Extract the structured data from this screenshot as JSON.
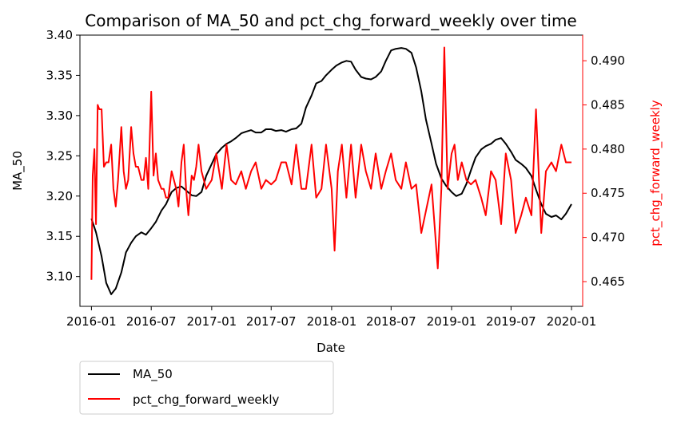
{
  "chart_data": {
    "type": "line",
    "title": "Comparison of MA_50 and pct_chg_forward_weekly over time",
    "xlabel": "Date",
    "ylabel_left": "MA_50",
    "ylabel_right": "pct_chg_forward_weekly",
    "x_ticks": [
      "2016-01",
      "2016-07",
      "2017-01",
      "2017-07",
      "2018-01",
      "2018-07",
      "2019-01",
      "2019-07",
      "2020-01"
    ],
    "y_left_ticks": [
      "3.10",
      "3.15",
      "3.20",
      "3.25",
      "3.30",
      "3.35",
      "3.40"
    ],
    "y_right_ticks": [
      "0.465",
      "0.470",
      "0.475",
      "0.480",
      "0.485",
      "0.490"
    ],
    "ylim_left": [
      3.063,
      3.4
    ],
    "ylim_right": [
      0.4622,
      0.4929
    ],
    "xlim": [
      "2015-11-27",
      "2020-02-04"
    ],
    "grid": false,
    "legend_position": "below-left",
    "colors": {
      "MA_50": "#000000",
      "pct_chg_forward_weekly": "#ff0000"
    },
    "series": [
      {
        "name": "MA_50",
        "axis": "left",
        "color": "#000000",
        "x": [
          "2016-01-01",
          "2016-01-15",
          "2016-02-01",
          "2016-02-15",
          "2016-03-01",
          "2016-03-15",
          "2016-04-01",
          "2016-04-15",
          "2016-05-01",
          "2016-05-15",
          "2016-06-01",
          "2016-06-15",
          "2016-07-01",
          "2016-07-15",
          "2016-08-01",
          "2016-08-15",
          "2016-09-01",
          "2016-09-15",
          "2016-10-01",
          "2016-10-15",
          "2016-11-01",
          "2016-11-15",
          "2016-12-01",
          "2016-12-15",
          "2017-01-01",
          "2017-01-15",
          "2017-02-01",
          "2017-02-15",
          "2017-03-01",
          "2017-03-15",
          "2017-04-01",
          "2017-04-15",
          "2017-05-01",
          "2017-05-15",
          "2017-06-01",
          "2017-06-15",
          "2017-07-01",
          "2017-07-15",
          "2017-08-01",
          "2017-08-15",
          "2017-09-01",
          "2017-09-15",
          "2017-10-01",
          "2017-10-15",
          "2017-11-01",
          "2017-11-15",
          "2017-12-01",
          "2017-12-15",
          "2018-01-01",
          "2018-01-15",
          "2018-02-01",
          "2018-02-15",
          "2018-03-01",
          "2018-03-15",
          "2018-04-01",
          "2018-04-15",
          "2018-05-01",
          "2018-05-15",
          "2018-06-01",
          "2018-06-15",
          "2018-07-01",
          "2018-07-15",
          "2018-08-01",
          "2018-08-15",
          "2018-09-01",
          "2018-09-15",
          "2018-10-01",
          "2018-10-15",
          "2018-11-01",
          "2018-11-15",
          "2018-12-01",
          "2018-12-15",
          "2019-01-01",
          "2019-01-15",
          "2019-02-01",
          "2019-02-15",
          "2019-03-01",
          "2019-03-15",
          "2019-04-01",
          "2019-04-15",
          "2019-05-01",
          "2019-05-15",
          "2019-06-01",
          "2019-06-15",
          "2019-07-01",
          "2019-07-15",
          "2019-08-01",
          "2019-08-15",
          "2019-09-01",
          "2019-09-15",
          "2019-10-01",
          "2019-10-15",
          "2019-11-01",
          "2019-11-15",
          "2019-12-01",
          "2019-12-15",
          "2020-01-01"
        ],
        "values": [
          3.172,
          3.155,
          3.125,
          3.092,
          3.078,
          3.085,
          3.105,
          3.13,
          3.142,
          3.15,
          3.155,
          3.152,
          3.16,
          3.168,
          3.182,
          3.19,
          3.205,
          3.21,
          3.212,
          3.207,
          3.201,
          3.2,
          3.205,
          3.225,
          3.24,
          3.252,
          3.26,
          3.265,
          3.268,
          3.272,
          3.278,
          3.28,
          3.282,
          3.279,
          3.279,
          3.283,
          3.283,
          3.281,
          3.282,
          3.28,
          3.283,
          3.284,
          3.29,
          3.31,
          3.325,
          3.34,
          3.343,
          3.35,
          3.357,
          3.362,
          3.366,
          3.368,
          3.367,
          3.357,
          3.348,
          3.346,
          3.345,
          3.348,
          3.355,
          3.368,
          3.381,
          3.383,
          3.384,
          3.383,
          3.378,
          3.36,
          3.33,
          3.295,
          3.265,
          3.24,
          3.222,
          3.213,
          3.205,
          3.2,
          3.203,
          3.215,
          3.232,
          3.248,
          3.258,
          3.262,
          3.265,
          3.27,
          3.272,
          3.265,
          3.255,
          3.245,
          3.24,
          3.235,
          3.225,
          3.208,
          3.19,
          3.178,
          3.174,
          3.176,
          3.171,
          3.178,
          3.19
        ]
      },
      {
        "name": "pct_chg_forward_weekly",
        "axis": "right",
        "color": "#ff0000",
        "x": [
          "2016-01-01",
          "2016-01-05",
          "2016-01-10",
          "2016-01-15",
          "2016-01-20",
          "2016-01-25",
          "2016-02-01",
          "2016-02-08",
          "2016-02-15",
          "2016-02-22",
          "2016-03-01",
          "2016-03-08",
          "2016-03-15",
          "2016-03-22",
          "2016-04-01",
          "2016-04-08",
          "2016-04-15",
          "2016-04-22",
          "2016-05-01",
          "2016-05-08",
          "2016-05-15",
          "2016-05-22",
          "2016-06-01",
          "2016-06-08",
          "2016-06-15",
          "2016-06-22",
          "2016-07-01",
          "2016-07-08",
          "2016-07-15",
          "2016-07-22",
          "2016-08-01",
          "2016-08-08",
          "2016-08-15",
          "2016-08-22",
          "2016-09-01",
          "2016-09-08",
          "2016-09-15",
          "2016-09-22",
          "2016-10-01",
          "2016-10-08",
          "2016-10-15",
          "2016-10-22",
          "2016-11-01",
          "2016-11-08",
          "2016-11-15",
          "2016-11-22",
          "2016-12-01",
          "2016-12-15",
          "2017-01-01",
          "2017-01-15",
          "2017-02-01",
          "2017-02-15",
          "2017-03-01",
          "2017-03-15",
          "2017-04-01",
          "2017-04-15",
          "2017-05-01",
          "2017-05-15",
          "2017-06-01",
          "2017-06-15",
          "2017-07-01",
          "2017-07-15",
          "2017-08-01",
          "2017-08-15",
          "2017-09-01",
          "2017-09-15",
          "2017-10-01",
          "2017-10-15",
          "2017-11-01",
          "2017-11-15",
          "2017-12-01",
          "2017-12-15",
          "2018-01-01",
          "2018-01-10",
          "2018-01-20",
          "2018-02-01",
          "2018-02-15",
          "2018-03-01",
          "2018-03-15",
          "2018-04-01",
          "2018-04-15",
          "2018-05-01",
          "2018-05-15",
          "2018-06-01",
          "2018-06-15",
          "2018-07-01",
          "2018-07-15",
          "2018-08-01",
          "2018-08-15",
          "2018-09-01",
          "2018-09-15",
          "2018-10-01",
          "2018-10-15",
          "2018-11-01",
          "2018-11-10",
          "2018-11-20",
          "2018-12-01",
          "2018-12-10",
          "2018-12-20",
          "2019-01-01",
          "2019-01-10",
          "2019-01-20",
          "2019-02-01",
          "2019-02-15",
          "2019-03-01",
          "2019-03-15",
          "2019-04-01",
          "2019-04-15",
          "2019-05-01",
          "2019-05-15",
          "2019-06-01",
          "2019-06-15",
          "2019-07-01",
          "2019-07-15",
          "2019-08-01",
          "2019-08-15",
          "2019-09-01",
          "2019-09-15",
          "2019-10-01",
          "2019-10-15",
          "2019-11-01",
          "2019-11-15",
          "2019-12-01",
          "2019-12-15",
          "2020-01-01"
        ],
        "values": [
          0.4652,
          0.477,
          0.48,
          0.4715,
          0.485,
          0.4845,
          0.4845,
          0.478,
          0.4785,
          0.4785,
          0.4805,
          0.4755,
          0.4735,
          0.4765,
          0.4825,
          0.4775,
          0.4755,
          0.4765,
          0.4825,
          0.4795,
          0.478,
          0.478,
          0.4765,
          0.4765,
          0.479,
          0.4755,
          0.4865,
          0.477,
          0.4795,
          0.4765,
          0.4755,
          0.4755,
          0.4745,
          0.4745,
          0.4775,
          0.4765,
          0.4755,
          0.4735,
          0.4785,
          0.4805,
          0.4755,
          0.4725,
          0.477,
          0.4765,
          0.478,
          0.4805,
          0.4775,
          0.4755,
          0.4765,
          0.4795,
          0.4755,
          0.4805,
          0.4765,
          0.476,
          0.4775,
          0.4755,
          0.4775,
          0.4785,
          0.4755,
          0.4765,
          0.476,
          0.4765,
          0.4785,
          0.4785,
          0.476,
          0.4805,
          0.4755,
          0.4755,
          0.4805,
          0.4745,
          0.4755,
          0.4805,
          0.4755,
          0.4685,
          0.4775,
          0.4805,
          0.4745,
          0.4805,
          0.4745,
          0.4805,
          0.4775,
          0.4755,
          0.4795,
          0.4755,
          0.4775,
          0.4795,
          0.4765,
          0.4755,
          0.4785,
          0.4755,
          0.476,
          0.4705,
          0.473,
          0.476,
          0.4715,
          0.4665,
          0.4755,
          0.4915,
          0.4755,
          0.4795,
          0.4805,
          0.4765,
          0.4785,
          0.4765,
          0.476,
          0.4765,
          0.4745,
          0.4725,
          0.4775,
          0.4765,
          0.4715,
          0.4795,
          0.4765,
          0.4705,
          0.4725,
          0.4745,
          0.4725,
          0.4845,
          0.4705,
          0.4775,
          0.4785,
          0.4775,
          0.4805,
          0.4785,
          0.4785
        ]
      }
    ]
  }
}
